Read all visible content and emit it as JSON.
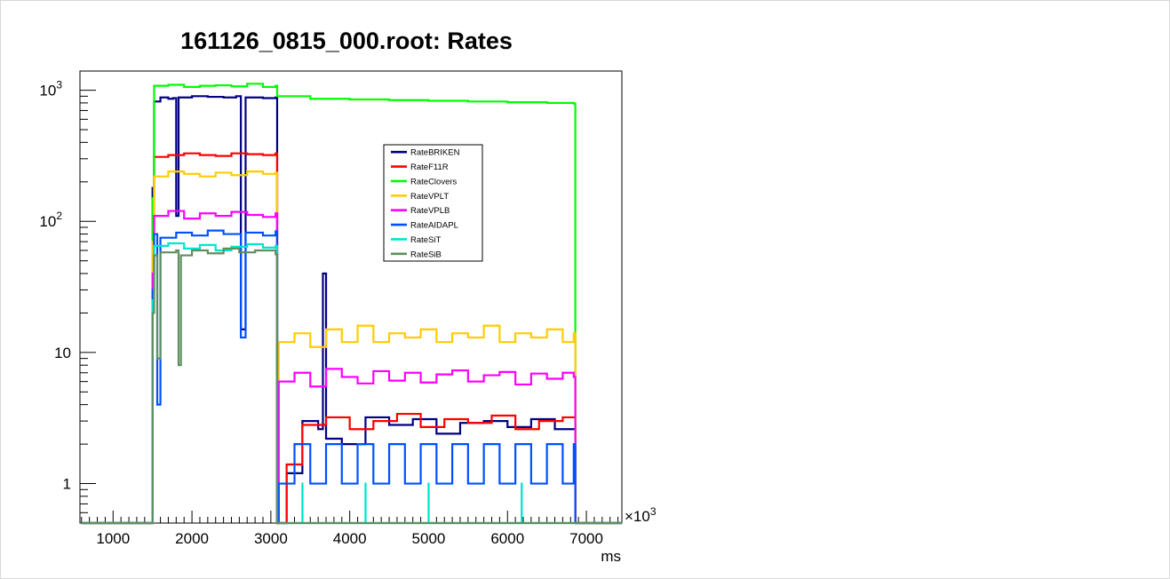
{
  "chart_data": {
    "type": "line",
    "style": "histogram-step",
    "title": "161126_0815_000.root: Rates",
    "xlabel": "ms",
    "x_multiplier_label": "×10",
    "x_multiplier_exponent": "3",
    "ylabel": "",
    "y_scale": "log",
    "xlim": [
      580,
      7450
    ],
    "ylim": [
      0.5,
      1400
    ],
    "x_ticks": [
      1000,
      2000,
      3000,
      4000,
      5000,
      6000,
      7000
    ],
    "x_tick_labels": [
      "1000",
      "2000",
      "3000",
      "4000",
      "5000",
      "6000",
      "7000"
    ],
    "y_ticks": [
      {
        "value": 1,
        "label": "1",
        "exp": ""
      },
      {
        "value": 10,
        "label": "10",
        "exp": ""
      },
      {
        "value": 100,
        "label": "10",
        "exp": "2"
      },
      {
        "value": 1000,
        "label": "10",
        "exp": "3"
      }
    ],
    "grid": false,
    "legend_position": "top-right",
    "series": [
      {
        "name": "RateBRIKEN",
        "color": "#00007f",
        "points": [
          [
            600,
            0.5
          ],
          [
            1500,
            0.5
          ],
          [
            1500,
            180
          ],
          [
            1520,
            820
          ],
          [
            1600,
            880
          ],
          [
            1700,
            860
          ],
          [
            1760,
            870
          ],
          [
            1800,
            110
          ],
          [
            1830,
            880
          ],
          [
            2000,
            900
          ],
          [
            2200,
            890
          ],
          [
            2400,
            880
          ],
          [
            2560,
            900
          ],
          [
            2620,
            15
          ],
          [
            2680,
            880
          ],
          [
            2900,
            870
          ],
          [
            3060,
            880
          ],
          [
            3080,
            0.5
          ],
          [
            3200,
            1.2
          ],
          [
            3400,
            3.0
          ],
          [
            3600,
            2.6
          ],
          [
            3660,
            40
          ],
          [
            3700,
            2.2
          ],
          [
            3900,
            2.0
          ],
          [
            4200,
            3.2
          ],
          [
            4500,
            2.8
          ],
          [
            4800,
            3.1
          ],
          [
            5100,
            2.4
          ],
          [
            5400,
            2.9
          ],
          [
            5700,
            3.0
          ],
          [
            6000,
            2.7
          ],
          [
            6300,
            3.1
          ],
          [
            6600,
            2.6
          ],
          [
            6860,
            0.5
          ],
          [
            7450,
            0.5
          ]
        ]
      },
      {
        "name": "RateF11R",
        "color": "#ff0000",
        "points": [
          [
            600,
            0.5
          ],
          [
            1500,
            0.5
          ],
          [
            1500,
            90
          ],
          [
            1520,
            310
          ],
          [
            1700,
            320
          ],
          [
            1900,
            330
          ],
          [
            2100,
            320
          ],
          [
            2300,
            315
          ],
          [
            2500,
            330
          ],
          [
            2700,
            325
          ],
          [
            2900,
            320
          ],
          [
            3060,
            330
          ],
          [
            3080,
            0.5
          ],
          [
            3200,
            1.4
          ],
          [
            3400,
            2.8
          ],
          [
            3700,
            3.2
          ],
          [
            4000,
            2.6
          ],
          [
            4300,
            3.0
          ],
          [
            4600,
            3.4
          ],
          [
            4900,
            2.7
          ],
          [
            5200,
            3.1
          ],
          [
            5500,
            2.9
          ],
          [
            5800,
            3.3
          ],
          [
            6100,
            2.6
          ],
          [
            6400,
            3.0
          ],
          [
            6700,
            3.2
          ],
          [
            6860,
            0.5
          ],
          [
            7450,
            0.5
          ]
        ]
      },
      {
        "name": "RateClovers",
        "color": "#00ff00",
        "points": [
          [
            600,
            0.5
          ],
          [
            1500,
            0.5
          ],
          [
            1500,
            150
          ],
          [
            1520,
            1080
          ],
          [
            1700,
            1100
          ],
          [
            1900,
            1060
          ],
          [
            2100,
            1080
          ],
          [
            2300,
            1090
          ],
          [
            2500,
            1070
          ],
          [
            2700,
            1120
          ],
          [
            2900,
            1060
          ],
          [
            3060,
            1080
          ],
          [
            3080,
            900
          ],
          [
            3500,
            860
          ],
          [
            4000,
            850
          ],
          [
            4500,
            840
          ],
          [
            5000,
            830
          ],
          [
            5500,
            820
          ],
          [
            6000,
            810
          ],
          [
            6500,
            800
          ],
          [
            6840,
            790
          ],
          [
            6860,
            0.5
          ],
          [
            7450,
            0.5
          ]
        ]
      },
      {
        "name": "RateVPLT",
        "color": "#ffcc00",
        "points": [
          [
            600,
            0.5
          ],
          [
            1500,
            0.5
          ],
          [
            1500,
            70
          ],
          [
            1520,
            220
          ],
          [
            1700,
            240
          ],
          [
            1900,
            230
          ],
          [
            2100,
            220
          ],
          [
            2300,
            235
          ],
          [
            2500,
            225
          ],
          [
            2700,
            240
          ],
          [
            2900,
            230
          ],
          [
            3060,
            235
          ],
          [
            3080,
            0.5
          ],
          [
            3100,
            12
          ],
          [
            3300,
            14
          ],
          [
            3500,
            11
          ],
          [
            3700,
            15
          ],
          [
            3900,
            12
          ],
          [
            4100,
            16
          ],
          [
            4300,
            12
          ],
          [
            4500,
            14
          ],
          [
            4700,
            13
          ],
          [
            4900,
            15
          ],
          [
            5100,
            12
          ],
          [
            5300,
            14
          ],
          [
            5500,
            13
          ],
          [
            5700,
            16
          ],
          [
            5900,
            12
          ],
          [
            6100,
            14
          ],
          [
            6300,
            13
          ],
          [
            6500,
            15
          ],
          [
            6700,
            12
          ],
          [
            6840,
            14
          ],
          [
            6860,
            0.5
          ],
          [
            7450,
            0.5
          ]
        ]
      },
      {
        "name": "RateVPLB",
        "color": "#ff00ff",
        "points": [
          [
            600,
            0.5
          ],
          [
            1500,
            0.5
          ],
          [
            1500,
            40
          ],
          [
            1520,
            110
          ],
          [
            1700,
            120
          ],
          [
            1900,
            105
          ],
          [
            2100,
            115
          ],
          [
            2300,
            110
          ],
          [
            2500,
            118
          ],
          [
            2700,
            112
          ],
          [
            2900,
            108
          ],
          [
            3060,
            115
          ],
          [
            3080,
            0.5
          ],
          [
            3100,
            6
          ],
          [
            3300,
            7
          ],
          [
            3500,
            5.5
          ],
          [
            3700,
            7.5
          ],
          [
            3900,
            6.5
          ],
          [
            4100,
            5.8
          ],
          [
            4300,
            7.2
          ],
          [
            4500,
            6.1
          ],
          [
            4700,
            7.0
          ],
          [
            4900,
            5.9
          ],
          [
            5100,
            6.8
          ],
          [
            5300,
            7.3
          ],
          [
            5500,
            6.0
          ],
          [
            5700,
            6.7
          ],
          [
            5900,
            7.1
          ],
          [
            6100,
            5.7
          ],
          [
            6300,
            6.9
          ],
          [
            6500,
            6.3
          ],
          [
            6700,
            7.0
          ],
          [
            6840,
            6.5
          ],
          [
            6860,
            0.5
          ],
          [
            7450,
            0.5
          ]
        ]
      },
      {
        "name": "RateAIDAPL",
        "color": "#0050ff",
        "points": [
          [
            600,
            0.5
          ],
          [
            1500,
            0.5
          ],
          [
            1500,
            30
          ],
          [
            1520,
            80
          ],
          [
            1560,
            4
          ],
          [
            1600,
            75
          ],
          [
            1800,
            82
          ],
          [
            2000,
            78
          ],
          [
            2200,
            85
          ],
          [
            2400,
            80
          ],
          [
            2620,
            13
          ],
          [
            2680,
            82
          ],
          [
            2900,
            78
          ],
          [
            3060,
            84
          ],
          [
            3080,
            0.5
          ],
          [
            3100,
            1
          ],
          [
            3300,
            2
          ],
          [
            3500,
            1
          ],
          [
            3700,
            2
          ],
          [
            3900,
            1
          ],
          [
            4100,
            2
          ],
          [
            4300,
            1
          ],
          [
            4500,
            2
          ],
          [
            4700,
            1
          ],
          [
            4900,
            2
          ],
          [
            5100,
            1
          ],
          [
            5300,
            2
          ],
          [
            5500,
            1
          ],
          [
            5700,
            2
          ],
          [
            5900,
            1
          ],
          [
            6100,
            2
          ],
          [
            6300,
            1
          ],
          [
            6500,
            2
          ],
          [
            6700,
            1
          ],
          [
            6840,
            2
          ],
          [
            6860,
            0.5
          ],
          [
            7450,
            0.5
          ]
        ]
      },
      {
        "name": "RateSiT",
        "color": "#00e5cc",
        "points": [
          [
            600,
            0.5
          ],
          [
            1500,
            0.5
          ],
          [
            1500,
            25
          ],
          [
            1520,
            65
          ],
          [
            1700,
            68
          ],
          [
            1900,
            62
          ],
          [
            2100,
            66
          ],
          [
            2300,
            60
          ],
          [
            2500,
            64
          ],
          [
            2700,
            67
          ],
          [
            2900,
            63
          ],
          [
            3060,
            65
          ],
          [
            3080,
            0.5
          ],
          [
            3400,
            1
          ],
          [
            3401,
            0.5
          ],
          [
            4200,
            1
          ],
          [
            4201,
            0.5
          ],
          [
            5000,
            1
          ],
          [
            5001,
            0.5
          ],
          [
            6180,
            1
          ],
          [
            6181,
            0.5
          ],
          [
            6860,
            0.5
          ],
          [
            7450,
            0.5
          ]
        ]
      },
      {
        "name": "RateSiB",
        "color": "#5f8f5f",
        "points": [
          [
            600,
            0.5
          ],
          [
            1500,
            0.5
          ],
          [
            1500,
            20
          ],
          [
            1520,
            55
          ],
          [
            1560,
            9
          ],
          [
            1600,
            58
          ],
          [
            1800,
            60
          ],
          [
            1830,
            8
          ],
          [
            1860,
            55
          ],
          [
            2000,
            60
          ],
          [
            2200,
            57
          ],
          [
            2400,
            62
          ],
          [
            2600,
            58
          ],
          [
            2800,
            60
          ],
          [
            3060,
            56
          ],
          [
            3080,
            0.5
          ],
          [
            7450,
            0.5
          ]
        ]
      }
    ]
  }
}
